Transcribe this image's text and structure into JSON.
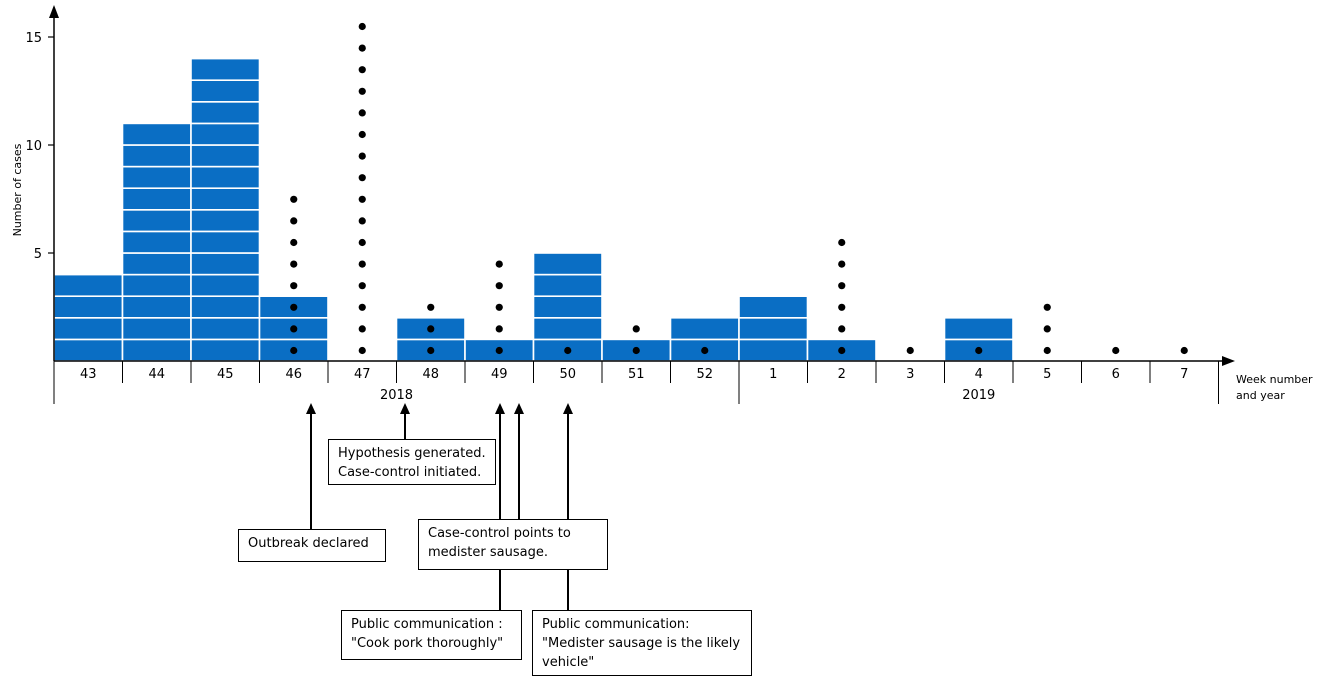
{
  "chart_data": {
    "type": "bar",
    "ylabel": "Number of cases",
    "xlabel": "Week number and year",
    "ylim": [
      0,
      16
    ],
    "yticks": [
      5,
      10,
      15
    ],
    "categories": [
      "43",
      "44",
      "45",
      "46",
      "47",
      "48",
      "49",
      "50",
      "51",
      "52",
      "1",
      "2",
      "3",
      "4",
      "5",
      "6",
      "7"
    ],
    "years": [
      {
        "label": "2018",
        "from": "43",
        "to": "52"
      },
      {
        "label": "2019",
        "from": "1",
        "to": "7"
      }
    ],
    "series": [
      {
        "values": [
          4,
          11,
          14,
          3,
          0,
          2,
          1,
          5,
          1,
          2,
          3,
          1,
          0,
          2,
          0,
          0,
          0
        ]
      },
      {
        "values": [
          0,
          0,
          0,
          8,
          16,
          3,
          5,
          1,
          2,
          1,
          0,
          6,
          1,
          1,
          3,
          1,
          1
        ]
      }
    ],
    "bar_color": "#0a6ec4",
    "annotations": [
      {
        "id": "outbreak",
        "week": "46",
        "text": [
          "Outbreak declared"
        ]
      },
      {
        "id": "hypothesis",
        "week": "48",
        "text": [
          "Hypothesis generated.",
          "Case-control initiated."
        ]
      },
      {
        "id": "casecontrol",
        "week": "49",
        "text": [
          "Case-control points to",
          "medister sausage."
        ]
      },
      {
        "id": "pubcomm1",
        "week": "49",
        "text": [
          "Public communication :",
          "\"Cook pork thoroughly\""
        ]
      },
      {
        "id": "pubcomm2",
        "week": "50",
        "text": [
          "Public communication:",
          "\"Medister sausage is the likely",
          "vehicle\""
        ]
      }
    ]
  }
}
